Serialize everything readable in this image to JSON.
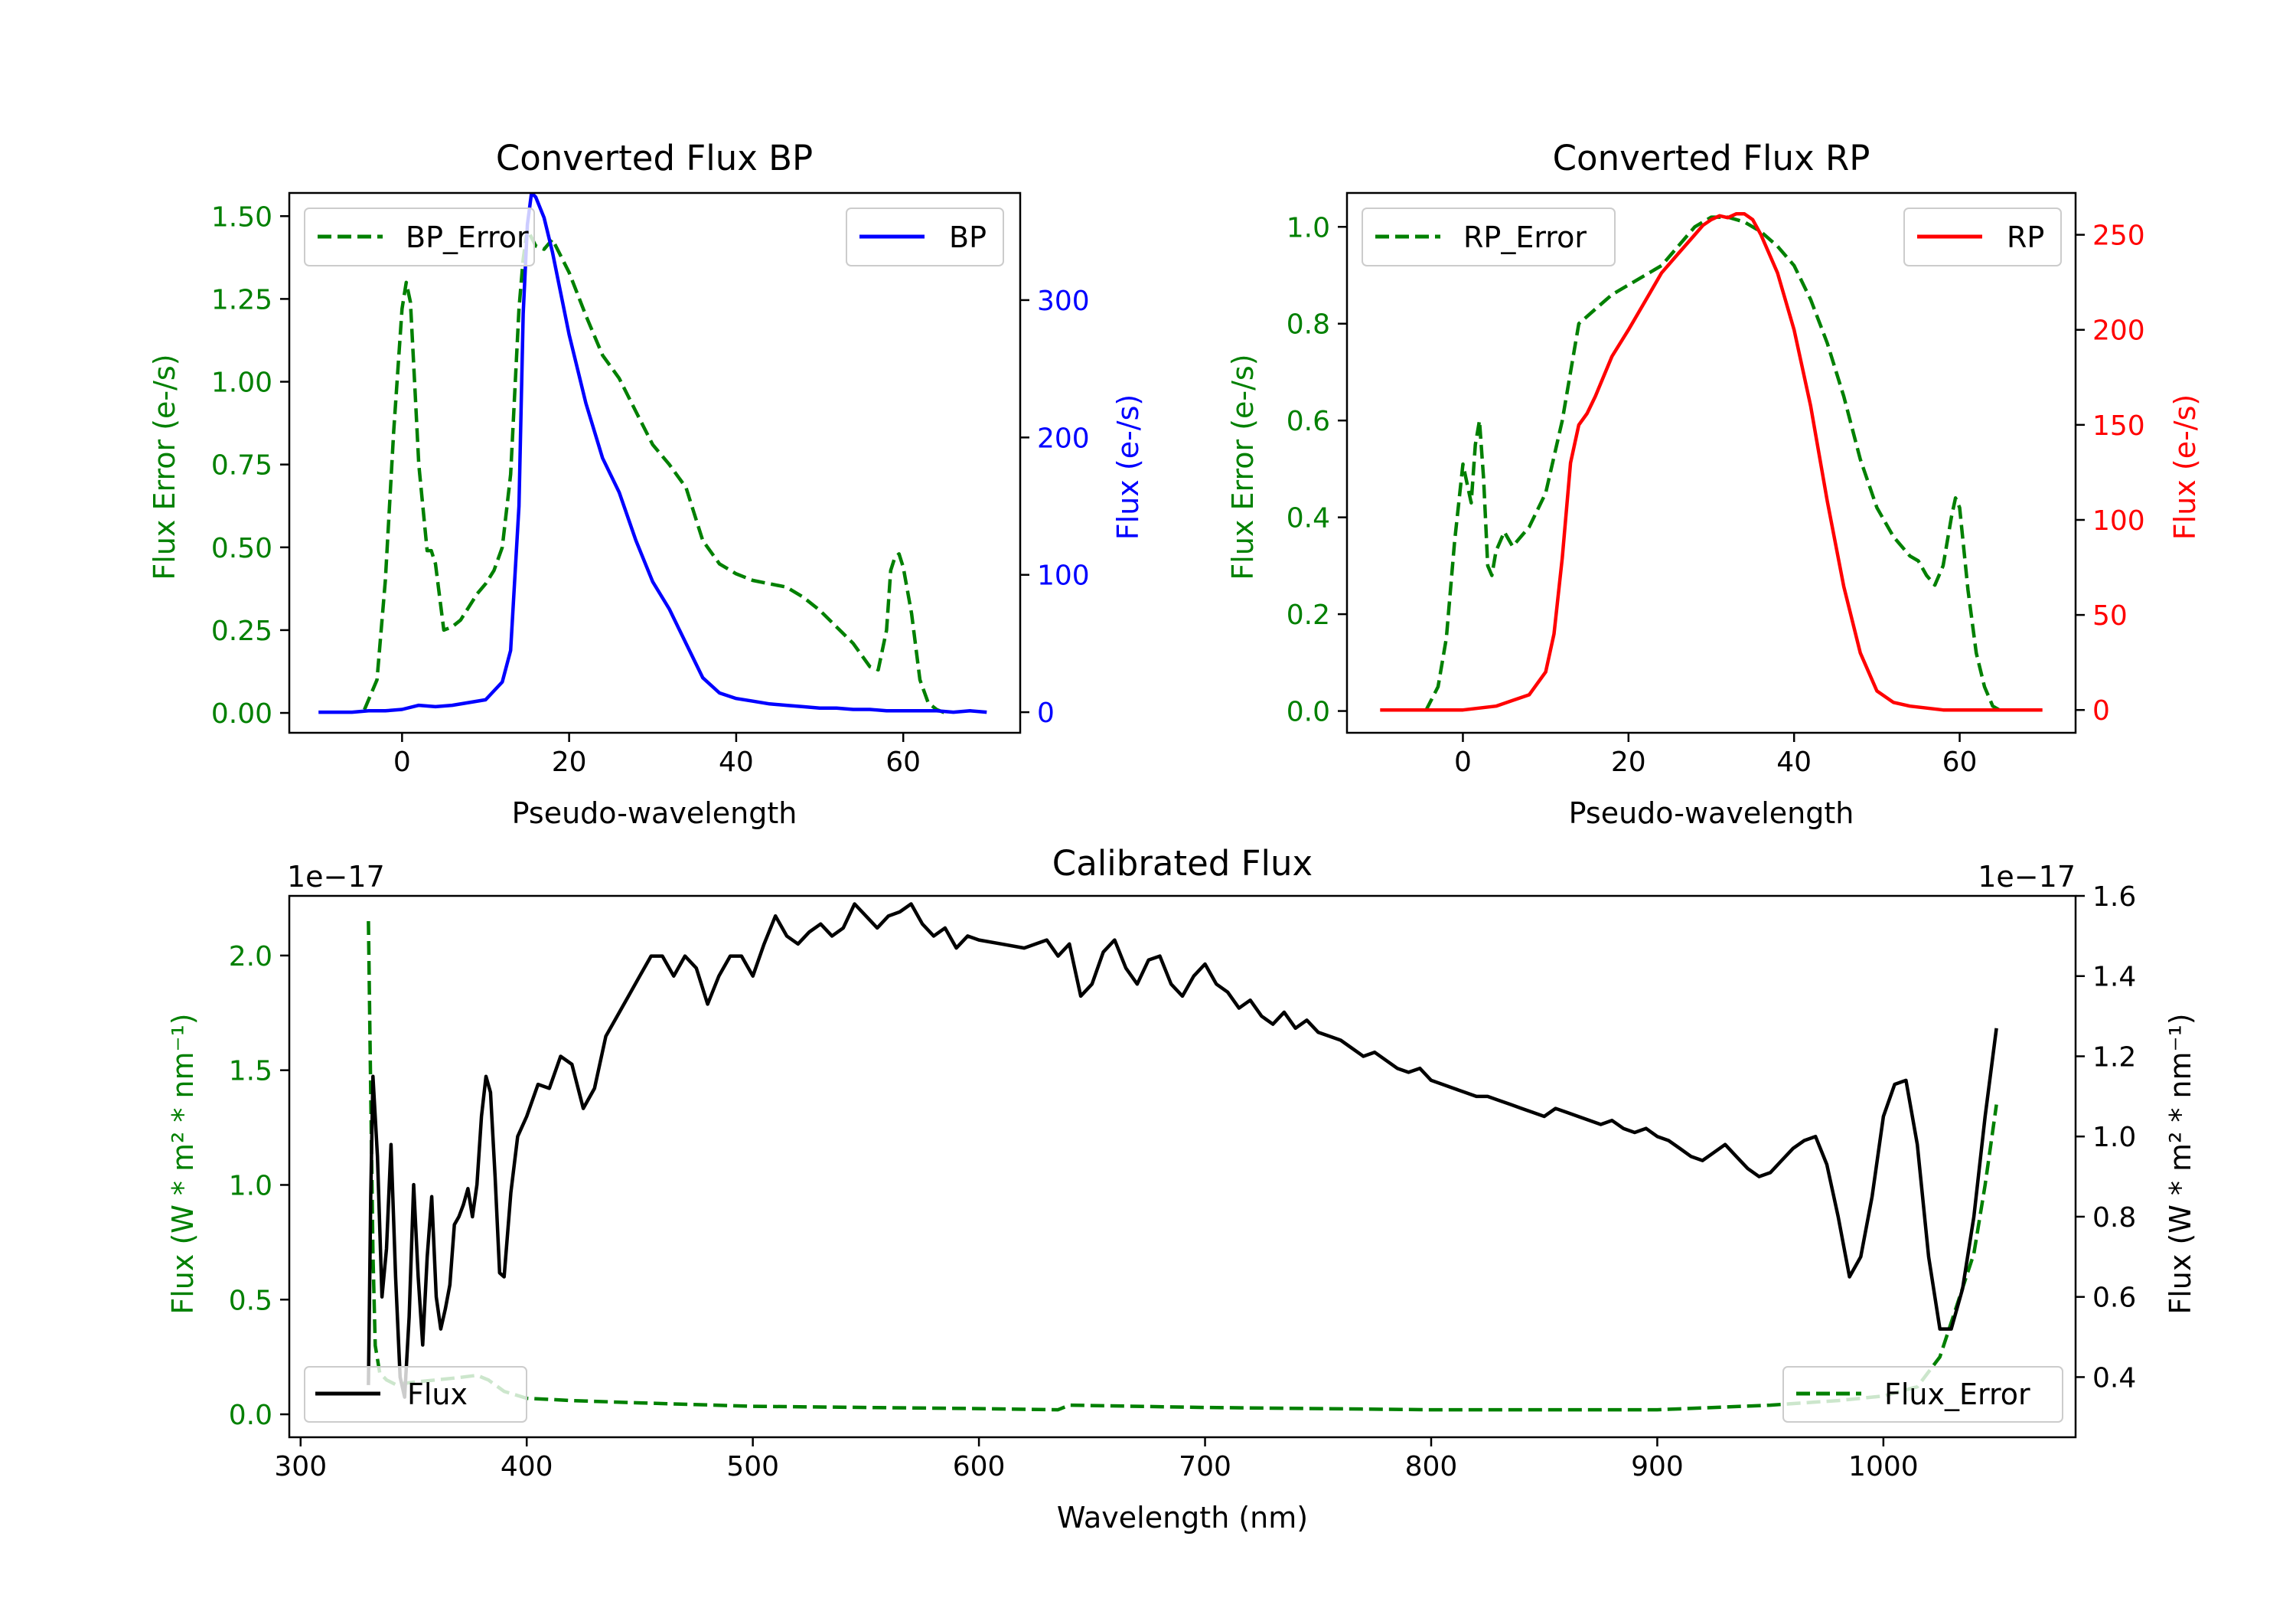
{
  "chart_data": [
    {
      "id": "bp",
      "type": "line",
      "title": "Converted Flux BP",
      "xlabel": "Pseudo-wavelength",
      "ylabel_left": "Flux Error (e-/s)",
      "ylabel_right": "Flux (e-/s)",
      "xlim": [
        -13.5,
        74
      ],
      "ylim_left": [
        -0.06,
        1.57
      ],
      "ylim_right": [
        -15,
        378
      ],
      "xticks": [
        0,
        20,
        40,
        60
      ],
      "yticks_left": [
        "0.00",
        "0.25",
        "0.50",
        "0.75",
        "1.00",
        "1.25",
        "1.50"
      ],
      "yticks_right": [
        "0",
        "100",
        "200",
        "300"
      ],
      "left_color": "#008000",
      "right_color": "#0000ff",
      "legend_left": "BP_Error",
      "legend_right": "BP",
      "legend_left_position": "top-left",
      "legend_right_position": "top-right",
      "series": [
        {
          "name": "BP_Error",
          "axis": "left",
          "style": "dashed",
          "x": [
            -4.5,
            -3,
            -2,
            -1,
            0,
            0.5,
            1,
            1.5,
            2,
            3,
            3.5,
            4,
            5,
            6,
            7,
            8,
            9,
            10,
            11,
            12,
            13,
            14,
            14.5,
            15,
            16,
            17,
            18,
            19,
            20,
            22,
            24,
            26,
            28,
            30,
            32,
            34,
            36,
            38,
            40,
            42,
            44,
            46,
            48,
            50,
            52,
            54,
            56,
            57,
            58,
            58.5,
            59,
            59.5,
            60,
            61,
            62,
            63,
            64,
            65
          ],
          "y": [
            0.01,
            0.1,
            0.4,
            0.85,
            1.22,
            1.3,
            1.24,
            1.0,
            0.75,
            0.49,
            0.49,
            0.45,
            0.25,
            0.26,
            0.28,
            0.32,
            0.36,
            0.39,
            0.43,
            0.5,
            0.72,
            1.22,
            1.37,
            1.46,
            1.41,
            1.4,
            1.43,
            1.38,
            1.33,
            1.2,
            1.08,
            1.01,
            0.91,
            0.81,
            0.75,
            0.68,
            0.52,
            0.45,
            0.42,
            0.4,
            0.39,
            0.38,
            0.35,
            0.31,
            0.26,
            0.21,
            0.14,
            0.13,
            0.25,
            0.43,
            0.47,
            0.48,
            0.44,
            0.3,
            0.1,
            0.03,
            0.01,
            0.0
          ]
        },
        {
          "name": "BP",
          "axis": "right",
          "style": "solid",
          "x": [
            -10,
            -8,
            -6,
            -4,
            -2,
            0,
            2,
            4,
            6,
            8,
            10,
            12,
            13,
            14,
            14.5,
            15,
            15.5,
            16,
            17,
            18,
            20,
            22,
            24,
            26,
            28,
            30,
            32,
            34,
            36,
            38,
            40,
            42,
            44,
            46,
            48,
            50,
            52,
            54,
            56,
            58,
            60,
            62,
            64,
            66,
            68,
            70
          ],
          "y": [
            0,
            0,
            0,
            1,
            1,
            2,
            5,
            4,
            5,
            7,
            9,
            22,
            45,
            150,
            290,
            355,
            378,
            375,
            360,
            335,
            275,
            225,
            185,
            160,
            125,
            95,
            75,
            50,
            25,
            14,
            10,
            8,
            6,
            5,
            4,
            3,
            3,
            2,
            2,
            1,
            1,
            1,
            1,
            0,
            1,
            0
          ]
        }
      ]
    },
    {
      "id": "rp",
      "type": "line",
      "title": "Converted Flux RP",
      "xlabel": "Pseudo-wavelength",
      "ylabel_left": "Flux Error (e-/s)",
      "ylabel_right": "Flux (e-/s)",
      "xlim": [
        -14,
        74
      ],
      "ylim_left": [
        -0.045,
        1.07
      ],
      "ylim_right": [
        -12,
        272
      ],
      "xticks": [
        0,
        20,
        40,
        60
      ],
      "yticks_left": [
        "0.0",
        "0.2",
        "0.4",
        "0.6",
        "0.8",
        "1.0"
      ],
      "yticks_right": [
        "0",
        "50",
        "100",
        "150",
        "200",
        "250"
      ],
      "left_color": "#008000",
      "right_color": "#ff0000",
      "legend_left": "RP_Error",
      "legend_right": "RP",
      "legend_left_position": "top-left",
      "legend_right_position": "top-right",
      "series": [
        {
          "name": "RP_Error",
          "axis": "left",
          "style": "dashed",
          "x": [
            -4.5,
            -3,
            -2,
            -1,
            0,
            0.5,
            1,
            1.5,
            2,
            2.5,
            3,
            3.5,
            4,
            5,
            6,
            7,
            8,
            10,
            12,
            14,
            16,
            18,
            20,
            22,
            24,
            26,
            28,
            30,
            32,
            34,
            36,
            38,
            40,
            42,
            44,
            46,
            48,
            50,
            52,
            54,
            55,
            56,
            57,
            58,
            59,
            59.5,
            60,
            61,
            62,
            63,
            64,
            65
          ],
          "y": [
            0.0,
            0.05,
            0.15,
            0.35,
            0.51,
            0.47,
            0.43,
            0.55,
            0.6,
            0.48,
            0.3,
            0.28,
            0.33,
            0.37,
            0.34,
            0.36,
            0.38,
            0.45,
            0.6,
            0.8,
            0.83,
            0.86,
            0.88,
            0.9,
            0.92,
            0.96,
            1.0,
            1.02,
            1.02,
            1.01,
            0.99,
            0.96,
            0.92,
            0.85,
            0.76,
            0.65,
            0.52,
            0.42,
            0.36,
            0.32,
            0.31,
            0.28,
            0.26,
            0.3,
            0.4,
            0.44,
            0.42,
            0.25,
            0.12,
            0.05,
            0.01,
            0.0
          ]
        },
        {
          "name": "RP",
          "axis": "right",
          "style": "solid",
          "x": [
            -10,
            -8,
            -6,
            -4,
            -2,
            0,
            2,
            4,
            6,
            8,
            10,
            11,
            12,
            13,
            14,
            15,
            16,
            18,
            20,
            22,
            24,
            26,
            28,
            29,
            30,
            31,
            32,
            33,
            34,
            35,
            36,
            38,
            40,
            42,
            44,
            46,
            48,
            50,
            52,
            54,
            56,
            58,
            60,
            62,
            64,
            66,
            68,
            70
          ],
          "y": [
            0,
            0,
            0,
            0,
            0,
            0,
            1,
            2,
            5,
            8,
            20,
            40,
            80,
            130,
            150,
            156,
            165,
            186,
            200,
            215,
            230,
            240,
            250,
            255,
            258,
            260,
            259,
            261,
            261,
            258,
            250,
            230,
            200,
            160,
            110,
            65,
            30,
            10,
            4,
            2,
            1,
            0,
            0,
            0,
            0,
            0,
            0,
            0
          ]
        }
      ]
    },
    {
      "id": "cal",
      "type": "line",
      "title": "Calibrated Flux",
      "xlabel": "Wavelength (nm)",
      "ylabel_left": "Flux (W * m² * nm⁻¹)",
      "ylabel_right": "Flux (W * m² * nm⁻¹)",
      "offset_left": "1e−17",
      "offset_right": "1e−17",
      "xlim": [
        295,
        1085
      ],
      "ylim_left": [
        -0.1,
        2.26
      ],
      "ylim_right": [
        0.25,
        1.6
      ],
      "xticks": [
        300,
        400,
        500,
        600,
        700,
        800,
        900,
        1000
      ],
      "yticks_left": [
        "0.0",
        "0.5",
        "1.0",
        "1.5",
        "2.0"
      ],
      "yticks_right": [
        "0.4",
        "0.6",
        "0.8",
        "1.0",
        "1.2",
        "1.4",
        "1.6"
      ],
      "left_color": "#008000",
      "right_color": "#000000",
      "legend_flux": "Flux",
      "legend_error": "Flux_Error",
      "legend_flux_position": "bottom-left",
      "legend_error_position": "bottom-right",
      "series": [
        {
          "name": "Flux_Error",
          "axis": "left",
          "style": "dashed",
          "x": [
            330,
            331,
            332,
            333,
            335,
            338,
            342,
            350,
            360,
            370,
            378,
            383,
            390,
            400,
            420,
            450,
            500,
            550,
            600,
            635,
            640,
            700,
            800,
            900,
            950,
            980,
            1000,
            1015,
            1025,
            1030,
            1035,
            1040,
            1045,
            1050
          ],
          "y": [
            2.15,
            1.4,
            0.7,
            0.3,
            0.18,
            0.15,
            0.13,
            0.14,
            0.15,
            0.16,
            0.17,
            0.15,
            0.1,
            0.07,
            0.06,
            0.05,
            0.035,
            0.03,
            0.025,
            0.02,
            0.04,
            0.03,
            0.02,
            0.02,
            0.04,
            0.06,
            0.08,
            0.12,
            0.25,
            0.4,
            0.55,
            0.7,
            1.0,
            1.35
          ]
        },
        {
          "name": "Flux",
          "axis": "right",
          "style": "solid",
          "x": [
            330,
            331,
            332,
            334,
            336,
            338,
            340,
            342,
            344,
            346,
            348,
            350,
            352,
            354,
            356,
            358,
            360,
            362,
            364,
            366,
            368,
            370,
            372,
            374,
            376,
            378,
            380,
            382,
            384,
            386,
            388,
            390,
            393,
            396,
            400,
            405,
            410,
            415,
            420,
            425,
            430,
            435,
            440,
            445,
            450,
            455,
            460,
            465,
            470,
            475,
            480,
            485,
            490,
            495,
            500,
            505,
            510,
            515,
            520,
            525,
            530,
            535,
            540,
            545,
            550,
            555,
            560,
            565,
            570,
            575,
            580,
            585,
            590,
            595,
            600,
            610,
            620,
            630,
            635,
            640,
            645,
            650,
            655,
            660,
            665,
            670,
            675,
            680,
            685,
            690,
            695,
            700,
            705,
            710,
            715,
            720,
            725,
            730,
            735,
            740,
            745,
            750,
            755,
            760,
            765,
            770,
            775,
            780,
            785,
            790,
            795,
            800,
            805,
            810,
            815,
            820,
            825,
            830,
            835,
            840,
            845,
            850,
            855,
            860,
            865,
            870,
            875,
            880,
            885,
            890,
            895,
            900,
            905,
            910,
            915,
            920,
            925,
            930,
            935,
            940,
            945,
            950,
            955,
            960,
            965,
            970,
            975,
            980,
            985,
            990,
            995,
            1000,
            1005,
            1010,
            1015,
            1020,
            1025,
            1030,
            1035,
            1040,
            1045,
            1050
          ],
          "y": [
            0.38,
            0.85,
            1.15,
            0.95,
            0.6,
            0.72,
            0.98,
            0.65,
            0.4,
            0.35,
            0.55,
            0.88,
            0.65,
            0.48,
            0.7,
            0.85,
            0.6,
            0.52,
            0.57,
            0.63,
            0.78,
            0.8,
            0.83,
            0.87,
            0.8,
            0.88,
            1.05,
            1.15,
            1.11,
            0.9,
            0.66,
            0.65,
            0.86,
            1.0,
            1.05,
            1.13,
            1.12,
            1.2,
            1.18,
            1.07,
            1.12,
            1.25,
            1.3,
            1.35,
            1.4,
            1.45,
            1.45,
            1.4,
            1.45,
            1.42,
            1.33,
            1.4,
            1.45,
            1.45,
            1.4,
            1.48,
            1.55,
            1.5,
            1.48,
            1.51,
            1.53,
            1.5,
            1.52,
            1.58,
            1.55,
            1.52,
            1.55,
            1.56,
            1.58,
            1.53,
            1.5,
            1.52,
            1.47,
            1.5,
            1.49,
            1.48,
            1.47,
            1.49,
            1.45,
            1.48,
            1.35,
            1.38,
            1.46,
            1.49,
            1.42,
            1.38,
            1.44,
            1.45,
            1.38,
            1.35,
            1.4,
            1.43,
            1.38,
            1.36,
            1.32,
            1.34,
            1.3,
            1.28,
            1.31,
            1.27,
            1.29,
            1.26,
            1.25,
            1.24,
            1.22,
            1.2,
            1.21,
            1.19,
            1.17,
            1.16,
            1.17,
            1.14,
            1.13,
            1.12,
            1.11,
            1.1,
            1.1,
            1.09,
            1.08,
            1.07,
            1.06,
            1.05,
            1.07,
            1.06,
            1.05,
            1.04,
            1.03,
            1.04,
            1.02,
            1.01,
            1.02,
            1.0,
            0.99,
            0.97,
            0.95,
            0.94,
            0.96,
            0.98,
            0.95,
            0.92,
            0.9,
            0.91,
            0.94,
            0.97,
            0.99,
            1.0,
            0.93,
            0.8,
            0.65,
            0.7,
            0.85,
            1.05,
            1.13,
            1.14,
            0.98,
            0.7,
            0.52,
            0.52,
            0.62,
            0.8,
            1.05,
            1.27
          ]
        }
      ]
    }
  ]
}
